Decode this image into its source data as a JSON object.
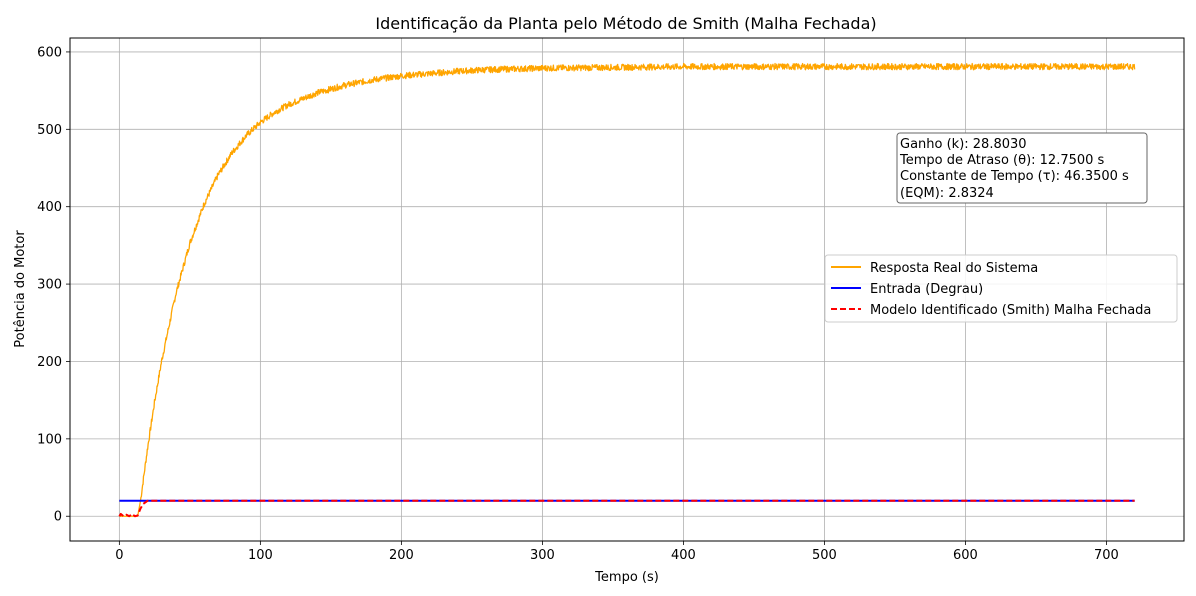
{
  "chart_data": {
    "type": "line",
    "title": "Identificação da Planta pelo Método de Smith (Malha Fechada)",
    "xlabel": "Tempo (s)",
    "ylabel": "Potência do Motor",
    "xlim": [
      -35,
      755
    ],
    "ylim": [
      -32,
      618
    ],
    "x_ticks": [
      0,
      100,
      200,
      300,
      400,
      500,
      600,
      700
    ],
    "y_ticks": [
      0,
      100,
      200,
      300,
      400,
      500,
      600
    ],
    "grid": true,
    "legend_position": "center-right",
    "series": [
      {
        "name": "Resposta Real do Sistema",
        "color": "#ffa500",
        "style": "solid",
        "noise_amplitude": 4,
        "x": [
          0,
          5,
          10,
          13,
          15,
          20,
          25,
          30,
          40,
          50,
          60,
          70,
          80,
          90,
          100,
          110,
          120,
          140,
          160,
          180,
          200,
          220,
          240,
          260,
          280,
          300,
          350,
          400,
          450,
          500,
          550,
          600,
          650,
          700,
          720
        ],
        "y": [
          0,
          0,
          0,
          0,
          20,
          88,
          148,
          201,
          287,
          353,
          403,
          441,
          470,
          492,
          509,
          522,
          532,
          547,
          557,
          564,
          569,
          572,
          575,
          577,
          578,
          579,
          580,
          581,
          581,
          581,
          581,
          581,
          581,
          581,
          581
        ]
      },
      {
        "name": "Entrada (Degrau)",
        "color": "#0000ff",
        "style": "solid",
        "x": [
          0,
          720
        ],
        "y": [
          20,
          20
        ]
      },
      {
        "name": "Modelo Identificado (Smith) Malha Fechada",
        "color": "#ff0000",
        "style": "dashed",
        "x": [
          0,
          1,
          3,
          5,
          7,
          9,
          11,
          13,
          15,
          17,
          20,
          720
        ],
        "y": [
          0,
          3,
          0,
          2,
          0,
          3,
          0,
          1,
          10,
          16,
          20,
          20
        ]
      }
    ],
    "annotation": {
      "lines": [
        "Ganho (k): 28.8030",
        "Tempo de Atraso (θ): 12.7500 s",
        "Constante de Tempo (τ): 46.3500 s",
        "(EQM): 2.8324"
      ]
    }
  }
}
